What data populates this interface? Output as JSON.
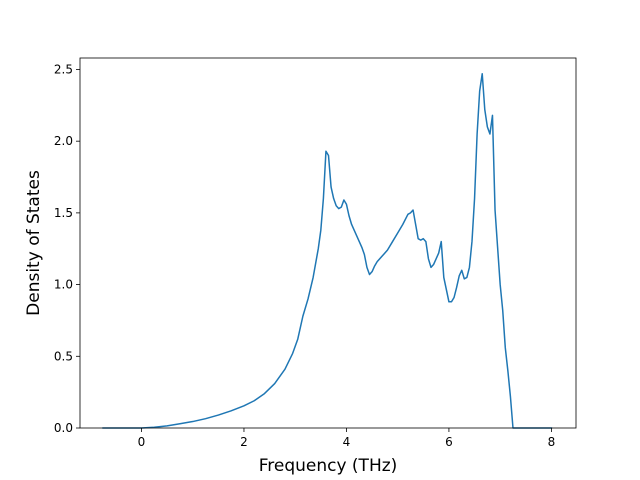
{
  "chart_data": {
    "type": "line",
    "title": "",
    "xlabel": "Frequency (THz)",
    "ylabel": "Density of States",
    "xlim": [
      -1.2,
      8.48
    ],
    "ylim": [
      0,
      2.58
    ],
    "xticks": [
      0,
      2,
      4,
      6,
      8
    ],
    "xtick_labels": [
      "0",
      "2",
      "4",
      "6",
      "8"
    ],
    "yticks": [
      0,
      0.5,
      1.0,
      1.5,
      2.0,
      2.5
    ],
    "ytick_labels": [
      "0.0",
      "0.5",
      "1.0",
      "1.5",
      "2.0",
      "2.5"
    ],
    "grid": false,
    "legend": "none",
    "line_color": "#1f77b4",
    "series": [
      {
        "x": [
          -0.75,
          -0.5,
          -0.25,
          0,
          0.25,
          0.5,
          0.75,
          1.0,
          1.25,
          1.5,
          1.75,
          2.0,
          2.2,
          2.4,
          2.6,
          2.8,
          2.95,
          3.05,
          3.15,
          3.25,
          3.35,
          3.45,
          3.5,
          3.55,
          3.6,
          3.65,
          3.7,
          3.75,
          3.8,
          3.85,
          3.9,
          3.95,
          4.0,
          4.05,
          4.1,
          4.2,
          4.3,
          4.35,
          4.4,
          4.45,
          4.5,
          4.55,
          4.6,
          4.7,
          4.8,
          4.9,
          5.0,
          5.1,
          5.2,
          5.25,
          5.3,
          5.35,
          5.4,
          5.45,
          5.5,
          5.55,
          5.6,
          5.65,
          5.7,
          5.75,
          5.8,
          5.85,
          5.9,
          6.0,
          6.05,
          6.1,
          6.15,
          6.2,
          6.25,
          6.3,
          6.35,
          6.4,
          6.45,
          6.5,
          6.55,
          6.6,
          6.65,
          6.7,
          6.75,
          6.8,
          6.85,
          6.9,
          6.95,
          7.0,
          7.05,
          7.1,
          7.15,
          7.2,
          7.25,
          7.3,
          7.5,
          7.75,
          8.0
        ],
        "y": [
          0,
          0,
          0,
          0,
          0.005,
          0.015,
          0.03,
          0.045,
          0.065,
          0.09,
          0.12,
          0.155,
          0.19,
          0.24,
          0.31,
          0.41,
          0.52,
          0.62,
          0.78,
          0.9,
          1.05,
          1.25,
          1.38,
          1.6,
          1.93,
          1.9,
          1.68,
          1.6,
          1.55,
          1.53,
          1.54,
          1.59,
          1.56,
          1.48,
          1.42,
          1.34,
          1.26,
          1.21,
          1.12,
          1.07,
          1.09,
          1.13,
          1.16,
          1.2,
          1.24,
          1.3,
          1.36,
          1.42,
          1.49,
          1.5,
          1.52,
          1.42,
          1.32,
          1.31,
          1.32,
          1.3,
          1.18,
          1.12,
          1.14,
          1.18,
          1.22,
          1.3,
          1.05,
          0.88,
          0.88,
          0.91,
          0.98,
          1.06,
          1.1,
          1.04,
          1.05,
          1.12,
          1.3,
          1.6,
          2.05,
          2.35,
          2.47,
          2.22,
          2.1,
          2.05,
          2.18,
          1.52,
          1.26,
          1.0,
          0.82,
          0.56,
          0.4,
          0.22,
          0.0,
          0.0,
          0.0,
          0.0,
          0.0
        ]
      }
    ]
  }
}
